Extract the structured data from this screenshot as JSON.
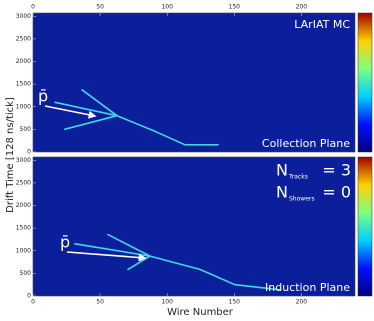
{
  "chart_data": [
    {
      "type": "line",
      "y_label": "Drift Time [128 ns/tick]",
      "annotations": [
        "LArIAT MC",
        "Collection Plane"
      ],
      "particle_label": "p̄",
      "xlim": [
        0,
        240
      ],
      "xticks": [
        0,
        50,
        100,
        150,
        200
      ],
      "ylim": [
        0,
        3072
      ],
      "yticks": [
        0,
        500,
        1000,
        1500,
        2000,
        2500,
        3000
      ],
      "series": [
        {
          "color": "#3fd8e8",
          "x": [
            16.4,
            62.6
          ],
          "values": [
            1099,
            802
          ]
        },
        {
          "color": "#3fd8e8",
          "x": [
            36.5,
            62.6
          ],
          "values": [
            1374,
            802
          ]
        },
        {
          "color": "#3fd8e8",
          "x": [
            23.8,
            62.6
          ],
          "values": [
            504,
            802
          ]
        },
        {
          "color": "#3fd8e8",
          "x": [
            62.6,
            90.9,
            113.3,
            137.9
          ],
          "values": [
            802,
            458,
            160,
            160
          ]
        }
      ]
    },
    {
      "type": "line",
      "x_label": "Wire Number",
      "annotations": [
        "Induction Plane"
      ],
      "particle_label": "p̄",
      "counts": [
        {
          "symbol": "N",
          "subscript": "Tracks",
          "text": "= 3"
        },
        {
          "symbol": "N",
          "subscript": "Showers",
          "text": "= 0"
        }
      ],
      "xlim": [
        0,
        240
      ],
      "xticks": [
        0,
        50,
        100,
        150,
        200
      ],
      "ylim": [
        0,
        3072
      ],
      "yticks": [
        0,
        500,
        1000,
        1500,
        2000,
        2500,
        3000
      ],
      "series": [
        {
          "color": "#3fd8e8",
          "x": [
            31.3,
            87.2
          ],
          "values": [
            1153,
            881
          ]
        },
        {
          "color": "#3fd8e8",
          "x": [
            55.9,
            87.2
          ],
          "values": [
            1356,
            881
          ]
        },
        {
          "color": "#3fd8e8",
          "x": [
            70.8,
            87.2
          ],
          "values": [
            588,
            881
          ]
        },
        {
          "color": "#3fd8e8",
          "x": [
            87.2,
            124.4,
            150.5,
            184.0
          ],
          "values": [
            881,
            588,
            249,
            136
          ]
        }
      ]
    }
  ]
}
